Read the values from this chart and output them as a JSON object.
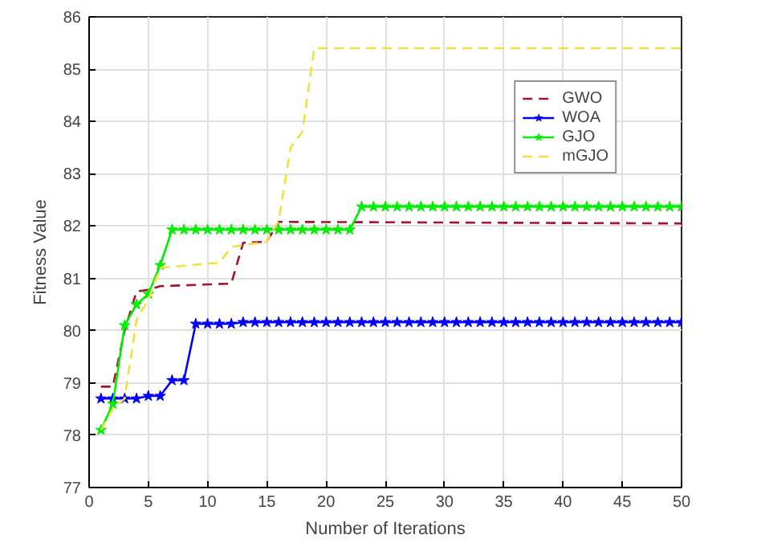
{
  "chart_data": {
    "type": "line",
    "xlabel": "Number of Iterations",
    "ylabel": "Fitness Value",
    "xlim": [
      0,
      50
    ],
    "xticks": [
      0,
      5,
      10,
      15,
      20,
      25,
      30,
      35,
      40,
      45,
      50
    ],
    "ylim": [
      77,
      86
    ],
    "yticks": [
      77,
      78,
      79,
      80,
      81,
      82,
      83,
      84,
      85,
      86
    ],
    "grid": true,
    "legend": "top right",
    "series": [
      {
        "name": "GWO",
        "color": "#a2142f",
        "line_style": "dashed",
        "marker": "none",
        "x": [
          1,
          2,
          3,
          4,
          5,
          6,
          12,
          13,
          15,
          16,
          50
        ],
        "values": [
          78.93,
          78.93,
          80.0,
          80.75,
          80.78,
          80.85,
          80.9,
          81.68,
          81.7,
          82.08,
          82.05
        ]
      },
      {
        "name": "WOA",
        "color": "#0000ff",
        "line_style": "solid",
        "marker": "star",
        "x": [
          1,
          2,
          3,
          4,
          5,
          6,
          7,
          8,
          9,
          10,
          11,
          12,
          13,
          14,
          15,
          16,
          17,
          18,
          19,
          20,
          21,
          22,
          23,
          24,
          25,
          26,
          27,
          28,
          29,
          30,
          31,
          32,
          33,
          34,
          35,
          36,
          37,
          38,
          39,
          40,
          41,
          42,
          43,
          44,
          45,
          46,
          47,
          48,
          49,
          50
        ],
        "values": [
          78.7,
          78.7,
          78.7,
          78.7,
          78.75,
          78.75,
          79.05,
          79.05,
          80.13,
          80.13,
          80.13,
          80.13,
          80.16,
          80.16,
          80.16,
          80.16,
          80.16,
          80.16,
          80.16,
          80.16,
          80.16,
          80.16,
          80.16,
          80.16,
          80.16,
          80.16,
          80.16,
          80.16,
          80.16,
          80.16,
          80.16,
          80.16,
          80.16,
          80.16,
          80.16,
          80.16,
          80.16,
          80.16,
          80.16,
          80.16,
          80.16,
          80.16,
          80.16,
          80.16,
          80.16,
          80.16,
          80.16,
          80.16,
          80.16,
          80.16
        ]
      },
      {
        "name": "GJO",
        "color": "#00ee00",
        "line_style": "solid",
        "marker": "star",
        "x": [
          1,
          2,
          3,
          4,
          5,
          6,
          7,
          8,
          9,
          10,
          11,
          12,
          13,
          14,
          15,
          16,
          17,
          18,
          19,
          20,
          21,
          22,
          23,
          24,
          25,
          26,
          27,
          28,
          29,
          30,
          31,
          32,
          33,
          34,
          35,
          36,
          37,
          38,
          39,
          40,
          41,
          42,
          43,
          44,
          45,
          46,
          47,
          48,
          49,
          50
        ],
        "values": [
          78.1,
          78.6,
          80.1,
          80.5,
          80.7,
          81.25,
          81.93,
          81.93,
          81.93,
          81.93,
          81.93,
          81.93,
          81.93,
          81.93,
          81.93,
          81.93,
          81.93,
          81.93,
          81.93,
          81.93,
          81.93,
          81.93,
          82.37,
          82.37,
          82.37,
          82.37,
          82.37,
          82.37,
          82.37,
          82.37,
          82.37,
          82.37,
          82.37,
          82.37,
          82.37,
          82.37,
          82.37,
          82.37,
          82.37,
          82.37,
          82.37,
          82.37,
          82.37,
          82.37,
          82.37,
          82.37,
          82.37,
          82.37,
          82.37,
          82.37
        ]
      },
      {
        "name": "mGJO",
        "color": "#f0e040",
        "line_style": "dashed",
        "marker": "none",
        "x": [
          1,
          2,
          3,
          4,
          5,
          6,
          11,
          12,
          15,
          16,
          17,
          18,
          19,
          50
        ],
        "values": [
          78.1,
          78.5,
          78.7,
          80.2,
          80.6,
          81.2,
          81.3,
          81.6,
          81.7,
          82.1,
          83.5,
          83.8,
          85.4,
          85.4
        ]
      }
    ]
  }
}
